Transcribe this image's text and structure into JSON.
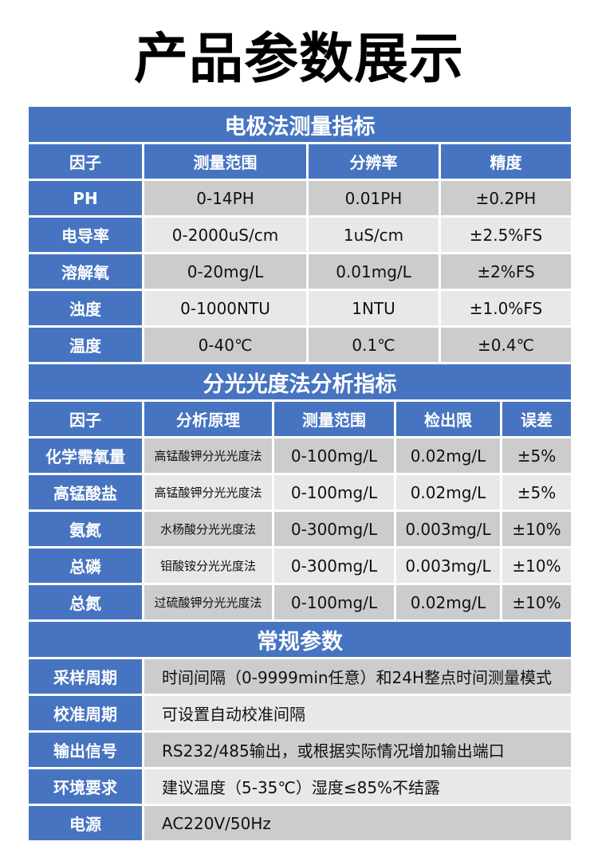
{
  "page": {
    "title": "产品参数展示"
  },
  "colors": {
    "blue": "#4674c1",
    "row-dark": "#cdcccc",
    "row-light": "#e9e8e8",
    "text-dark": "#111111",
    "text-light": "#ffffff",
    "page-bg": "#ffffff"
  },
  "tables": [
    {
      "section_title": "电极法测量指标",
      "columns": [
        "因子",
        "测量范围",
        "分辨率",
        "精度"
      ],
      "rows": [
        [
          "PH",
          "0-14PH",
          "0.01PH",
          "±0.2PH"
        ],
        [
          "电导率",
          "0-2000uS/cm",
          "1uS/cm",
          "±2.5%FS"
        ],
        [
          "溶解氧",
          "0-20mg/L",
          "0.01mg/L",
          "±2%FS"
        ],
        [
          "浊度",
          "0-1000NTU",
          "1NTU",
          "±1.0%FS"
        ],
        [
          "温度",
          "0-40℃",
          "0.1℃",
          "±0.4℃"
        ]
      ]
    },
    {
      "section_title": "分光光度法分析指标",
      "columns": [
        "因子",
        "分析原理",
        "测量范围",
        "检出限",
        "误差"
      ],
      "rows": [
        [
          "化学需氧量",
          "高锰酸钾分光光度法",
          "0-100mg/L",
          "0.02mg/L",
          "±5%"
        ],
        [
          "高锰酸盐",
          "高锰酸钾分光光度法",
          "0-100mg/L",
          "0.02mg/L",
          "±5%"
        ],
        [
          "氨氮",
          "水杨酸分光光度法",
          "0-300mg/L",
          "0.003mg/L",
          "±10%"
        ],
        [
          "总磷",
          "钼酸铵分光光度法",
          "0-300mg/L",
          "0.003mg/L",
          "±10%"
        ],
        [
          "总氮",
          "过硫酸钾分光光度法",
          "0-100mg/L",
          "0.02mg/L",
          "±10%"
        ]
      ]
    },
    {
      "section_title": "常规参数",
      "rows": [
        [
          "采样周期",
          "时间间隔（0-9999min任意）和24H整点时间测量模式"
        ],
        [
          "校准周期",
          "可设置自动校准间隔"
        ],
        [
          "输出信号",
          "RS232/485输出，或根据实际情况增加输出端口"
        ],
        [
          "环境要求",
          "建议温度（5-35℃）湿度≤85%不结露"
        ],
        [
          "电源",
          "AC220V/50Hz"
        ]
      ]
    }
  ]
}
